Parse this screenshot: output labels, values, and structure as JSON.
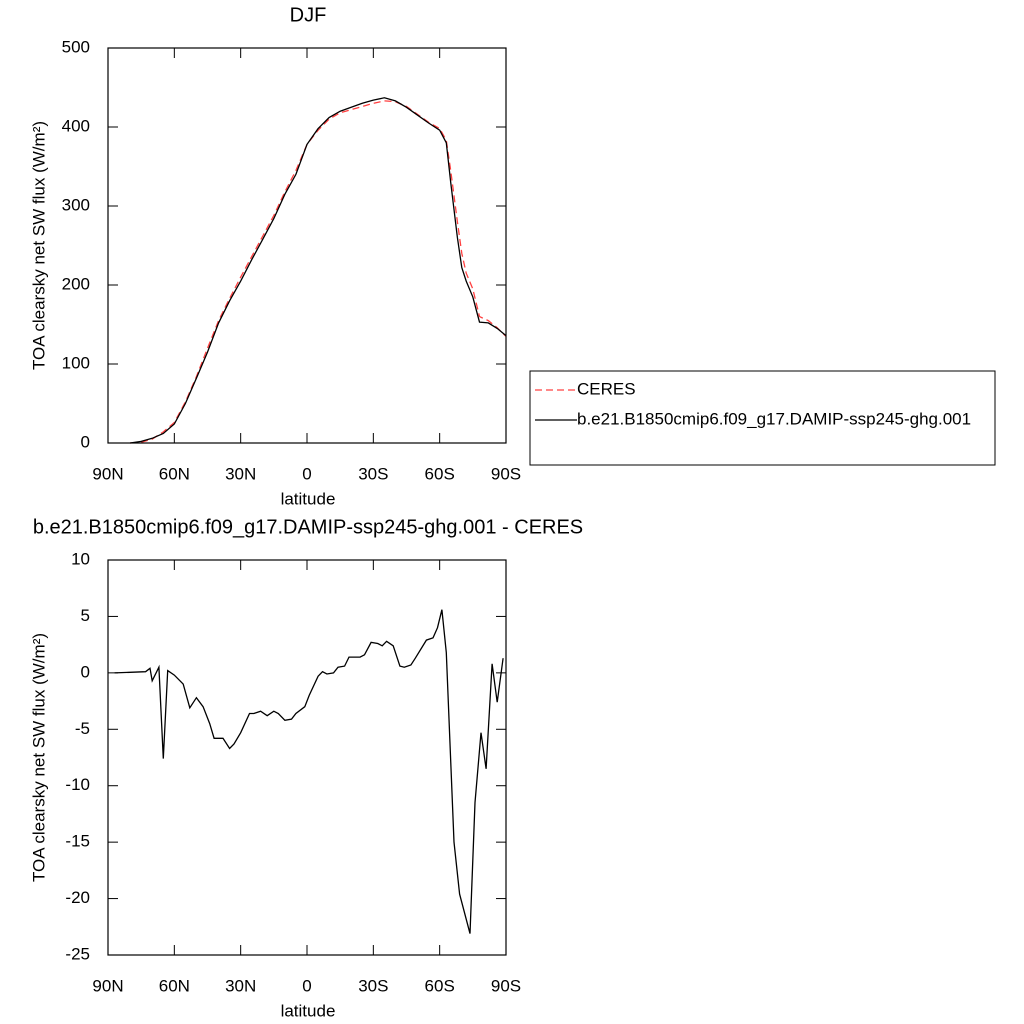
{
  "chart_data": [
    {
      "type": "line",
      "title": "DJF",
      "xlabel": "latitude",
      "ylabel": "TOA clearsky net SW flux (W/m²)",
      "x": [
        80,
        75,
        70,
        65,
        60,
        55,
        50,
        45,
        40,
        35,
        30,
        25,
        20,
        15,
        10,
        5,
        0,
        -5,
        -10,
        -15,
        -20,
        -25,
        -30,
        -35,
        -40,
        -45,
        -50,
        -55,
        -60,
        -63,
        -65,
        -68,
        -70,
        -72,
        -75,
        -78,
        -82,
        -86,
        -90
      ],
      "series": [
        {
          "name": "CERES",
          "color": "#ff4040",
          "linestyle": "dashed",
          "values": [
            0,
            1,
            5,
            14,
            26,
            52,
            84,
            120,
            155,
            183,
            210,
            236,
            262,
            288,
            318,
            345,
            378,
            396,
            410,
            418,
            422,
            426,
            430,
            433,
            432,
            426,
            416,
            406,
            398,
            383,
            345,
            280,
            240,
            215,
            195,
            160,
            155,
            146,
            135
          ]
        },
        {
          "name": "b.e21.B1850cmip6.f09_g17.DAMIP-ssp245-ghg.001",
          "color": "#000000",
          "linestyle": "solid",
          "values": [
            0,
            2,
            6,
            12,
            24,
            50,
            82,
            115,
            152,
            180,
            205,
            232,
            258,
            284,
            315,
            340,
            378,
            398,
            412,
            420,
            425,
            430,
            434,
            437,
            433,
            425,
            415,
            405,
            396,
            380,
            330,
            260,
            222,
            205,
            185,
            153,
            152,
            145,
            136
          ]
        }
      ],
      "legend": "right",
      "xlim": [
        90,
        -90
      ],
      "xticks": [
        {
          "value": 90,
          "label": "90N"
        },
        {
          "value": 60,
          "label": "60N"
        },
        {
          "value": 30,
          "label": "30N"
        },
        0,
        {
          "value": -30,
          "label": "30S"
        },
        {
          "value": -60,
          "label": "60S"
        },
        {
          "value": -90,
          "label": "90S"
        }
      ],
      "ylim": [
        0,
        500
      ],
      "yticks": [
        0,
        100,
        200,
        300,
        400,
        500
      ]
    },
    {
      "type": "line",
      "title": "b.e21.B1850cmip6.f09_g17.DAMIP-ssp245-ghg.001 - CERES",
      "xlabel": "latitude",
      "ylabel": "TOA clearsky net SW flux (W/m²)",
      "x": [
        87,
        73,
        71,
        70,
        67,
        65,
        63,
        60,
        56,
        53,
        50,
        47,
        44,
        42,
        38,
        35,
        33,
        30,
        26,
        24,
        21,
        18,
        15,
        13,
        10,
        7,
        5,
        1,
        -1,
        -5,
        -7,
        -9,
        -12,
        -14,
        -17,
        -19,
        -24,
        -26,
        -29,
        -32,
        -34,
        -36,
        -39,
        -42,
        -44,
        -47,
        -49,
        -54,
        -57,
        -59,
        -61,
        -63,
        -66.5,
        -69,
        -73.7,
        -76,
        -78.7,
        -81,
        -83.7,
        -86,
        -88.7
      ],
      "values": [
        0,
        0.1,
        0.4,
        -0.7,
        0.5,
        -7.6,
        0.2,
        -0.2,
        -1,
        -3.1,
        -2.2,
        -3,
        -4.5,
        -5.8,
        -5.8,
        -6.7,
        -6.3,
        -5.3,
        -3.6,
        -3.6,
        -3.4,
        -3.8,
        -3.4,
        -3.6,
        -4.2,
        -4.1,
        -3.6,
        -3,
        -2,
        -0.3,
        0.1,
        -0.1,
        0,
        0.5,
        0.6,
        1.4,
        1.4,
        1.6,
        2.7,
        2.6,
        2.4,
        2.8,
        2.4,
        0.6,
        0.5,
        0.7,
        1.3,
        2.9,
        3.1,
        4,
        5.6,
        1.8,
        -15,
        -19.6,
        -23.1,
        -11.5,
        -5.3,
        -8.5,
        0.8,
        -2.6,
        1.3
      ],
      "color": "#000000",
      "xlim": [
        90,
        -90
      ],
      "xticks": [
        {
          "value": 90,
          "label": "90N"
        },
        {
          "value": 60,
          "label": "60N"
        },
        {
          "value": 30,
          "label": "30N"
        },
        0,
        {
          "value": -30,
          "label": "30S"
        },
        {
          "value": -60,
          "label": "60S"
        },
        {
          "value": -90,
          "label": "90S"
        }
      ],
      "ylim": [
        -25,
        10
      ],
      "yticks": [
        -25,
        -20,
        -15,
        -10,
        -5,
        0,
        5,
        10
      ]
    }
  ]
}
